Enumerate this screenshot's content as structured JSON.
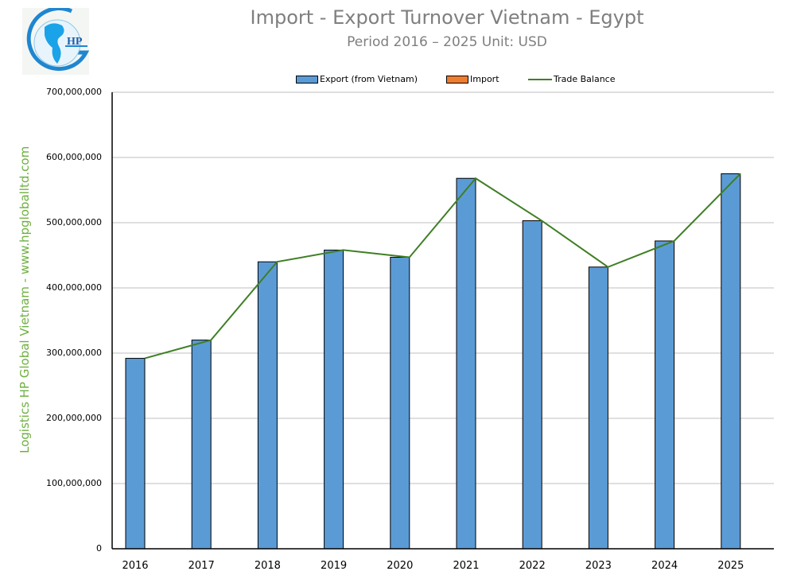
{
  "header": {
    "title": "Import - Export Turnover Vietnam - Egypt",
    "subtitle": "Period 2016 – 2025  Unit: USD",
    "logo_text": "HP"
  },
  "watermark": "Logistics HP Global Vietnam - www.hpgloballtd.com",
  "legend": [
    {
      "label": "Export (from Vietnam)",
      "color": "#5b9bd5",
      "kind": "bar"
    },
    {
      "label": "Import",
      "color": "#ed7d31",
      "kind": "bar"
    },
    {
      "label": "Trade Balance",
      "color": "#3f7f25",
      "kind": "line"
    }
  ],
  "yaxis": {
    "ticks": [
      "700,000,000",
      "600,000,000",
      "500,000,000",
      "400,000,000",
      "300,000,000",
      "200,000,000",
      "100,000,000",
      "0"
    ]
  },
  "xaxis": {
    "ticks": [
      "2016",
      "2017",
      "2018",
      "2019",
      "2020",
      "2021",
      "2022",
      "2023",
      "2024",
      "2025"
    ]
  },
  "chart_data": {
    "type": "bar",
    "title": "Import - Export Turnover Vietnam - Egypt",
    "subtitle": "Period 2016 – 2025  Unit: USD",
    "xlabel": "",
    "ylabel": "",
    "ylim": [
      0,
      700000000
    ],
    "grid": true,
    "legend_position": "top",
    "categories": [
      "2016",
      "2017",
      "2018",
      "2019",
      "2020",
      "2021",
      "2022",
      "2023",
      "2024",
      "2025"
    ],
    "series": [
      {
        "name": "Export (from Vietnam)",
        "type": "bar",
        "color": "#5b9bd5",
        "values": [
          292000000,
          320000000,
          440000000,
          458000000,
          447000000,
          568000000,
          503000000,
          432000000,
          472000000,
          575000000
        ]
      },
      {
        "name": "Import",
        "type": "bar",
        "color": "#ed7d31",
        "values": [
          0,
          0,
          0,
          0,
          0,
          0,
          0,
          0,
          0,
          0
        ]
      },
      {
        "name": "Trade Balance",
        "type": "line",
        "color": "#3f7f25",
        "values": [
          292000000,
          320000000,
          440000000,
          458000000,
          447000000,
          568000000,
          503000000,
          432000000,
          472000000,
          575000000
        ]
      }
    ]
  }
}
